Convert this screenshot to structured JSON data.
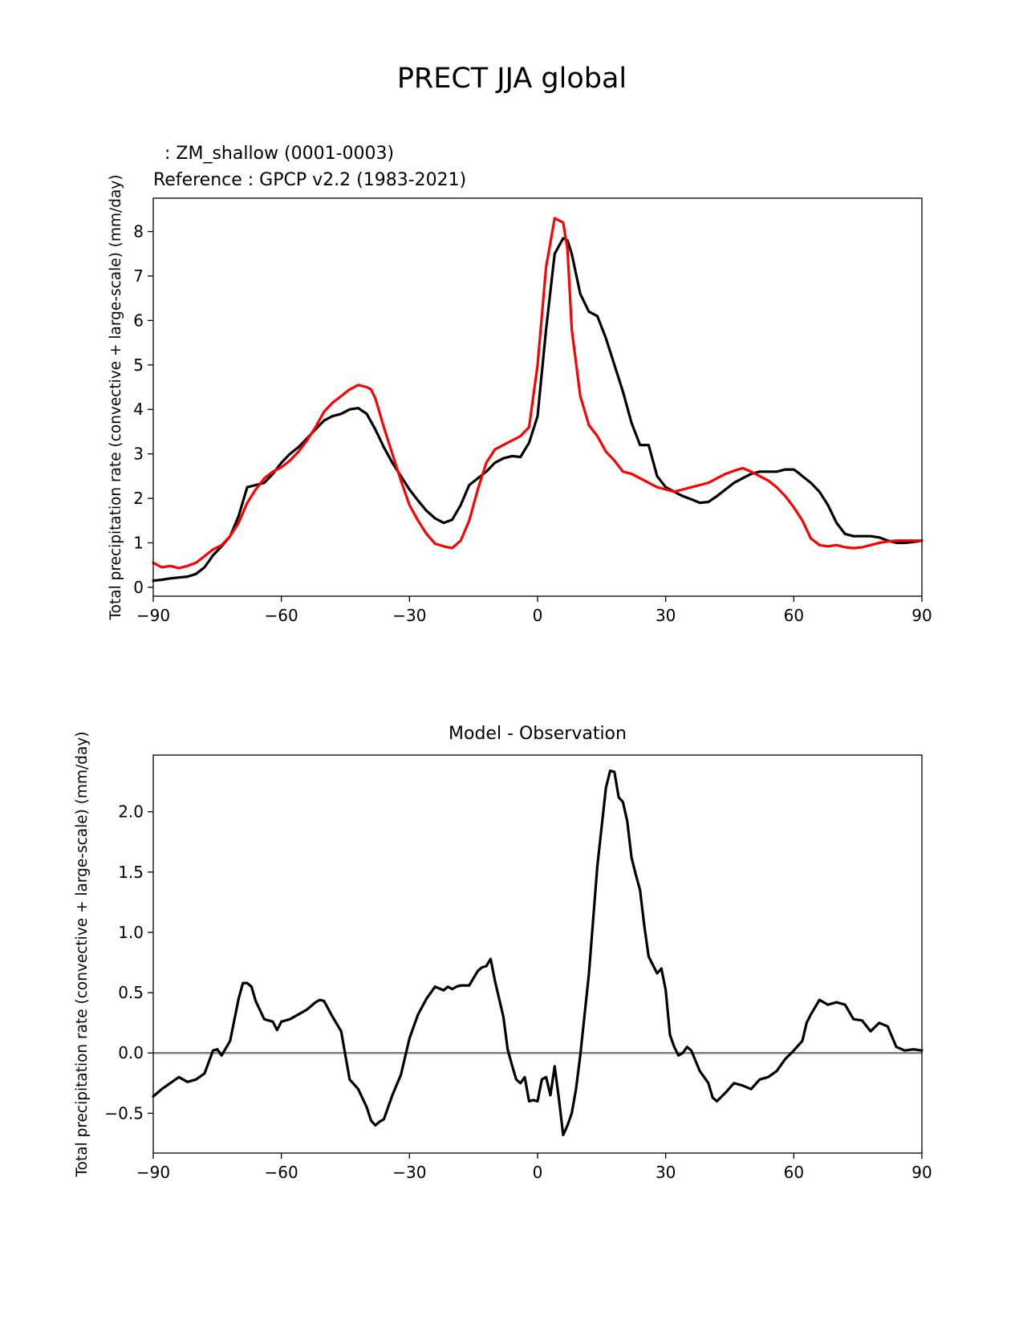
{
  "figure": {
    "title": "PRECT JJA global"
  },
  "colors": {
    "model": "#000000",
    "reference": "#ff0000",
    "zero_line": "#808080"
  },
  "chart_data": [
    {
      "type": "line",
      "name": "climatology",
      "test_label": "  : ZM_shallow (0001-0003)",
      "ref_label": "Reference : GPCP v2.2 (1983-2021)",
      "xlabel": "",
      "ylabel": "Total precipitation rate (convective + large-scale) (mm/day)",
      "xlim": [
        -90,
        90
      ],
      "ylim": [
        -0.2,
        8.75
      ],
      "xticks": [
        -90,
        -60,
        -30,
        0,
        30,
        60,
        90
      ],
      "xtick_labels": [
        "−90",
        "−60",
        "−30",
        "0",
        "30",
        "60",
        "90"
      ],
      "yticks": [
        0,
        1,
        2,
        3,
        4,
        5,
        6,
        7,
        8
      ],
      "ytick_labels": [
        "0",
        "1",
        "2",
        "3",
        "4",
        "5",
        "6",
        "7",
        "8"
      ],
      "series": [
        {
          "name": "ZM_shallow (0001-0003)",
          "color": "#000000",
          "x": [
            -90,
            -88,
            -86,
            -84,
            -82,
            -80,
            -78,
            -76,
            -74,
            -72,
            -70,
            -68,
            -66,
            -64,
            -62,
            -60,
            -58,
            -56,
            -54,
            -52,
            -50,
            -48,
            -46,
            -44,
            -42,
            -40,
            -38,
            -36,
            -34,
            -32,
            -30,
            -28,
            -26,
            -24,
            -22,
            -20,
            -18,
            -16,
            -14,
            -12,
            -10,
            -8,
            -6,
            -4,
            -2,
            0,
            2,
            4,
            6,
            7,
            8,
            10,
            12,
            14,
            16,
            18,
            20,
            22,
            24,
            26,
            28,
            30,
            32,
            34,
            36,
            38,
            40,
            42,
            44,
            46,
            48,
            50,
            52,
            54,
            56,
            58,
            60,
            61,
            62,
            64,
            66,
            68,
            70,
            72,
            74,
            76,
            78,
            80,
            82,
            84,
            86,
            88,
            90
          ],
          "values": [
            0.15,
            0.17,
            0.2,
            0.22,
            0.24,
            0.3,
            0.45,
            0.72,
            0.92,
            1.15,
            1.6,
            2.25,
            2.3,
            2.35,
            2.55,
            2.8,
            3.0,
            3.15,
            3.35,
            3.55,
            3.75,
            3.85,
            3.9,
            4.0,
            4.03,
            3.9,
            3.55,
            3.15,
            2.8,
            2.5,
            2.2,
            1.95,
            1.72,
            1.55,
            1.45,
            1.52,
            1.85,
            2.3,
            2.45,
            2.6,
            2.8,
            2.9,
            2.95,
            2.93,
            3.25,
            3.85,
            5.8,
            7.5,
            7.85,
            7.8,
            7.5,
            6.6,
            6.2,
            6.1,
            5.6,
            5.0,
            4.4,
            3.7,
            3.2,
            3.2,
            2.5,
            2.25,
            2.15,
            2.05,
            1.98,
            1.9,
            1.92,
            2.05,
            2.2,
            2.35,
            2.45,
            2.55,
            2.6,
            2.6,
            2.6,
            2.65,
            2.65,
            2.58,
            2.5,
            2.35,
            2.15,
            1.85,
            1.45,
            1.2,
            1.15,
            1.15,
            1.15,
            1.12,
            1.05,
            1.0,
            1.0,
            1.02,
            1.05
          ]
        },
        {
          "name": "GPCP v2.2 (1983-2021)",
          "color": "#ff0000",
          "x": [
            -90,
            -88,
            -86,
            -84,
            -82,
            -80,
            -78,
            -76,
            -74,
            -72,
            -70,
            -68,
            -66,
            -64,
            -62,
            -60,
            -58,
            -56,
            -54,
            -52,
            -50,
            -48,
            -46,
            -44,
            -42,
            -40,
            -39,
            -38,
            -36,
            -34,
            -32,
            -30,
            -28,
            -26,
            -24,
            -22,
            -20,
            -18,
            -16,
            -14,
            -12,
            -10,
            -8,
            -6,
            -4,
            -2,
            0,
            2,
            4,
            6,
            7,
            8,
            10,
            12,
            14,
            16,
            18,
            20,
            22,
            24,
            26,
            28,
            30,
            32,
            34,
            36,
            38,
            40,
            42,
            44,
            46,
            48,
            50,
            52,
            54,
            56,
            58,
            60,
            62,
            64,
            66,
            68,
            70,
            72,
            74,
            76,
            78,
            80,
            82,
            84,
            86,
            88,
            90
          ],
          "values": [
            0.55,
            0.45,
            0.48,
            0.43,
            0.48,
            0.55,
            0.7,
            0.85,
            0.95,
            1.15,
            1.45,
            1.9,
            2.2,
            2.45,
            2.6,
            2.7,
            2.85,
            3.05,
            3.3,
            3.6,
            3.95,
            4.15,
            4.3,
            4.45,
            4.55,
            4.5,
            4.45,
            4.25,
            3.6,
            3.0,
            2.4,
            1.85,
            1.5,
            1.2,
            0.98,
            0.92,
            0.88,
            1.05,
            1.5,
            2.2,
            2.8,
            3.1,
            3.2,
            3.3,
            3.4,
            3.6,
            5.0,
            7.2,
            8.3,
            8.2,
            7.6,
            5.8,
            4.3,
            3.65,
            3.4,
            3.05,
            2.85,
            2.6,
            2.55,
            2.45,
            2.35,
            2.25,
            2.2,
            2.15,
            2.2,
            2.25,
            2.3,
            2.35,
            2.45,
            2.55,
            2.62,
            2.68,
            2.6,
            2.5,
            2.4,
            2.25,
            2.05,
            1.8,
            1.5,
            1.1,
            0.95,
            0.92,
            0.95,
            0.9,
            0.88,
            0.9,
            0.95,
            1.0,
            1.03,
            1.05,
            1.05,
            1.05,
            1.05
          ]
        }
      ]
    },
    {
      "type": "line",
      "name": "difference",
      "title": "Model - Observation",
      "xlabel": "",
      "ylabel": "Total precipitation rate (convective + large-scale) (mm/day)",
      "xlim": [
        -90,
        90
      ],
      "ylim": [
        -0.83,
        2.47
      ],
      "xticks": [
        -90,
        -60,
        -30,
        0,
        30,
        60,
        90
      ],
      "xtick_labels": [
        "−90",
        "−60",
        "−30",
        "0",
        "30",
        "60",
        "90"
      ],
      "yticks": [
        -0.5,
        0.0,
        0.5,
        1.0,
        1.5,
        2.0
      ],
      "ytick_labels": [
        "−0.5",
        "0.0",
        "0.5",
        "1.0",
        "1.5",
        "2.0"
      ],
      "zero_line": 0,
      "series": [
        {
          "name": "Model - Observation",
          "color": "#000000",
          "x": [
            -90,
            -88,
            -86,
            -84,
            -82,
            -80,
            -78,
            -76,
            -75,
            -74,
            -72,
            -70,
            -69,
            -68,
            -67,
            -66,
            -64,
            -62,
            -61,
            -60,
            -58,
            -56,
            -54,
            -52,
            -51,
            -50,
            -48,
            -46,
            -45,
            -44,
            -42,
            -40,
            -39,
            -38,
            -37,
            -36,
            -34,
            -32,
            -30,
            -28,
            -26,
            -24,
            -22,
            -21,
            -20,
            -19,
            -18,
            -16,
            -14,
            -13,
            -12,
            -11,
            -10,
            -8,
            -7,
            -6,
            -5,
            -4,
            -3,
            -2,
            -1,
            0,
            1,
            2,
            3,
            4,
            5,
            6,
            7,
            8,
            9,
            10,
            12,
            14,
            16,
            17,
            18,
            19,
            20,
            21,
            22,
            23,
            24,
            25,
            26,
            28,
            29,
            30,
            31,
            32,
            33,
            34,
            35,
            36,
            38,
            40,
            41,
            42,
            44,
            46,
            48,
            50,
            52,
            54,
            56,
            58,
            60,
            62,
            63,
            64,
            66,
            68,
            70,
            72,
            74,
            76,
            78,
            80,
            82,
            84,
            86,
            88,
            90
          ],
          "values": [
            -0.36,
            -0.3,
            -0.25,
            -0.2,
            -0.24,
            -0.22,
            -0.17,
            0.02,
            0.03,
            -0.02,
            0.1,
            0.45,
            0.58,
            0.58,
            0.55,
            0.43,
            0.28,
            0.26,
            0.19,
            0.26,
            0.28,
            0.32,
            0.36,
            0.42,
            0.44,
            0.43,
            0.3,
            0.18,
            -0.02,
            -0.22,
            -0.3,
            -0.45,
            -0.56,
            -0.6,
            -0.57,
            -0.55,
            -0.35,
            -0.18,
            0.12,
            0.32,
            0.45,
            0.55,
            0.52,
            0.55,
            0.53,
            0.55,
            0.56,
            0.56,
            0.68,
            0.71,
            0.72,
            0.78,
            0.6,
            0.3,
            0.03,
            -0.1,
            -0.22,
            -0.25,
            -0.2,
            -0.4,
            -0.39,
            -0.4,
            -0.22,
            -0.2,
            -0.35,
            -0.11,
            -0.38,
            -0.68,
            -0.6,
            -0.5,
            -0.3,
            -0.02,
            0.65,
            1.55,
            2.2,
            2.34,
            2.33,
            2.12,
            2.08,
            1.92,
            1.62,
            1.48,
            1.35,
            1.05,
            0.8,
            0.66,
            0.7,
            0.52,
            0.15,
            0.05,
            -0.02,
            0.0,
            0.05,
            0.02,
            -0.15,
            -0.25,
            -0.37,
            -0.4,
            -0.33,
            -0.25,
            -0.27,
            -0.3,
            -0.22,
            -0.2,
            -0.15,
            -0.05,
            0.02,
            0.1,
            0.25,
            0.32,
            0.44,
            0.4,
            0.42,
            0.4,
            0.28,
            0.27,
            0.18,
            0.25,
            0.22,
            0.05,
            0.02,
            0.03,
            0.02
          ]
        }
      ]
    }
  ]
}
